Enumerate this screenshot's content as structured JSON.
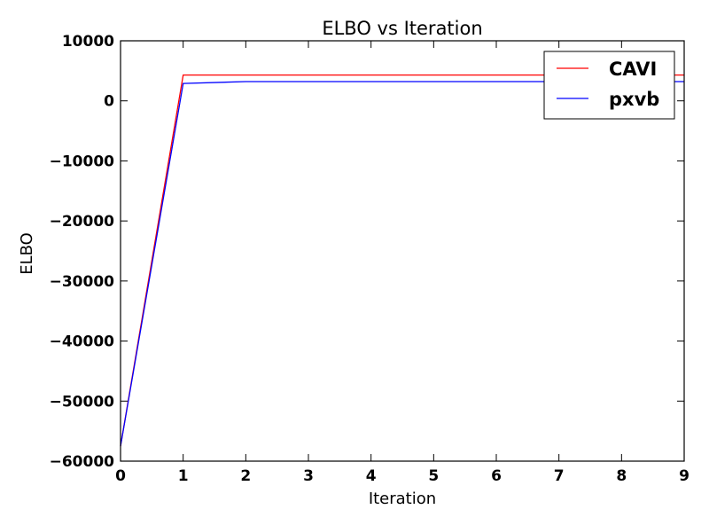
{
  "chart_data": {
    "type": "line",
    "title": "ELBO vs Iteration",
    "xlabel": "Iteration",
    "ylabel": "ELBO",
    "xlim": [
      0,
      9
    ],
    "ylim": [
      -60000,
      10000
    ],
    "xticks": [
      "0",
      "1",
      "2",
      "3",
      "4",
      "5",
      "6",
      "7",
      "8",
      "9"
    ],
    "yticks": [
      "10000",
      "0",
      "−10000",
      "−20000",
      "−30000",
      "−40000",
      "−50000",
      "−60000"
    ],
    "ytick_values": [
      10000,
      0,
      -10000,
      -20000,
      -30000,
      -40000,
      -50000,
      -60000
    ],
    "x": [
      0,
      1,
      2,
      3,
      4,
      5,
      6,
      7,
      8,
      9
    ],
    "series": [
      {
        "name": "CAVI",
        "color": "#ff0000",
        "values": [
          -57500,
          4300,
          4300,
          4300,
          4300,
          4300,
          4300,
          4300,
          4300,
          4300
        ]
      },
      {
        "name": "pxvb",
        "color": "#0000ff",
        "values": [
          -57500,
          2900,
          3200,
          3200,
          3200,
          3200,
          3200,
          3200,
          3200,
          3200
        ]
      }
    ],
    "legend_position": "top-right",
    "grid": false
  }
}
